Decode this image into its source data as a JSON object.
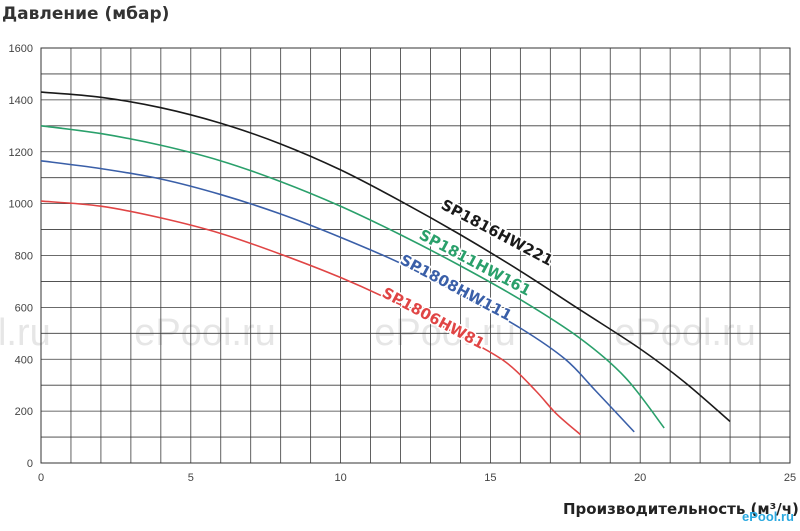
{
  "chart_data": {
    "type": "line",
    "title": "",
    "ylabel": "Давление (мбар)",
    "xlabel": "Производительность (м³/ч)",
    "xlim": [
      0,
      25
    ],
    "ylim": [
      0,
      1600
    ],
    "x_ticks": [
      0,
      5,
      10,
      15,
      20,
      25
    ],
    "y_ticks": [
      0,
      200,
      400,
      600,
      800,
      1000,
      1200,
      1400,
      1600
    ],
    "grid": true,
    "series": [
      {
        "name": "SP1816HW221",
        "color": "#1a1a1a",
        "points": [
          [
            0,
            1430
          ],
          [
            2,
            1410
          ],
          [
            4,
            1370
          ],
          [
            6,
            1310
          ],
          [
            8,
            1230
          ],
          [
            10,
            1130
          ],
          [
            12,
            1010
          ],
          [
            14,
            880
          ],
          [
            16,
            740
          ],
          [
            18,
            590
          ],
          [
            20,
            440
          ],
          [
            21.5,
            310
          ],
          [
            23,
            160
          ]
        ]
      },
      {
        "name": "SP1811HW161",
        "color": "#2aa06b",
        "points": [
          [
            0,
            1300
          ],
          [
            2,
            1270
          ],
          [
            4,
            1225
          ],
          [
            6,
            1165
          ],
          [
            8,
            1085
          ],
          [
            10,
            990
          ],
          [
            12,
            880
          ],
          [
            14,
            760
          ],
          [
            16,
            630
          ],
          [
            18,
            480
          ],
          [
            19.5,
            330
          ],
          [
            20.8,
            135
          ]
        ]
      },
      {
        "name": "SP1808HW111",
        "color": "#3a5fa8",
        "points": [
          [
            0,
            1165
          ],
          [
            2,
            1135
          ],
          [
            4,
            1095
          ],
          [
            6,
            1035
          ],
          [
            8,
            960
          ],
          [
            10,
            870
          ],
          [
            12,
            770
          ],
          [
            14,
            650
          ],
          [
            16,
            520
          ],
          [
            17.5,
            400
          ],
          [
            18.5,
            280
          ],
          [
            19.8,
            120
          ]
        ]
      },
      {
        "name": "SP1806HW81",
        "color": "#e04545",
        "points": [
          [
            0,
            1010
          ],
          [
            2,
            990
          ],
          [
            4,
            945
          ],
          [
            6,
            885
          ],
          [
            8,
            805
          ],
          [
            10,
            715
          ],
          [
            12,
            610
          ],
          [
            14,
            490
          ],
          [
            15.5,
            390
          ],
          [
            16.5,
            280
          ],
          [
            17.2,
            190
          ],
          [
            18,
            110
          ]
        ]
      }
    ],
    "annotations": [
      {
        "text": "SP1816HW221",
        "series": "SP1816HW221"
      },
      {
        "text": "SP1811HW161",
        "series": "SP1811HW161"
      },
      {
        "text": "SP1808HW111",
        "series": "SP1808HW111"
      },
      {
        "text": "SP1806HW81",
        "series": "SP1806HW81"
      }
    ],
    "watermark": "ePool.ru"
  }
}
